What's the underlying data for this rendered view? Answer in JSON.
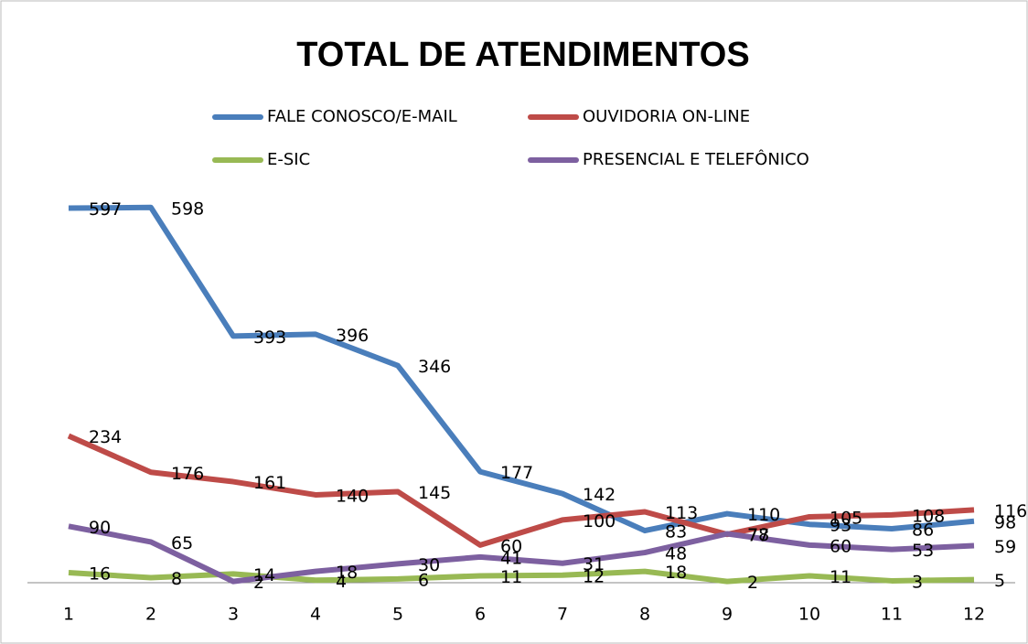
{
  "chart_data": {
    "type": "line",
    "title": "TOTAL DE ATENDIMENTOS",
    "categories": [
      "1",
      "2",
      "3",
      "4",
      "5",
      "6",
      "7",
      "8",
      "9",
      "10",
      "11",
      "12"
    ],
    "ylim": [
      0,
      640
    ],
    "legend": "top",
    "series": [
      {
        "name": "FALE CONOSCO/E-MAIL",
        "color": "#4a7ebb",
        "values": [
          597,
          598,
          393,
          396,
          346,
          177,
          142,
          83,
          110,
          93,
          86,
          98
        ]
      },
      {
        "name": "OUVIDORIA ON-LINE",
        "color": "#be4b48",
        "values": [
          234,
          176,
          161,
          140,
          145,
          60,
          100,
          113,
          77,
          105,
          108,
          116
        ]
      },
      {
        "name": "E-SIC",
        "color": "#98b954",
        "values": [
          16,
          8,
          14,
          4,
          6,
          11,
          12,
          18,
          2,
          11,
          3,
          5
        ]
      },
      {
        "name": "PRESENCIAL E TELEFÔNICO",
        "color": "#7d60a0",
        "values": [
          90,
          65,
          2,
          18,
          30,
          41,
          31,
          48,
          78,
          60,
          53,
          59
        ]
      }
    ]
  }
}
